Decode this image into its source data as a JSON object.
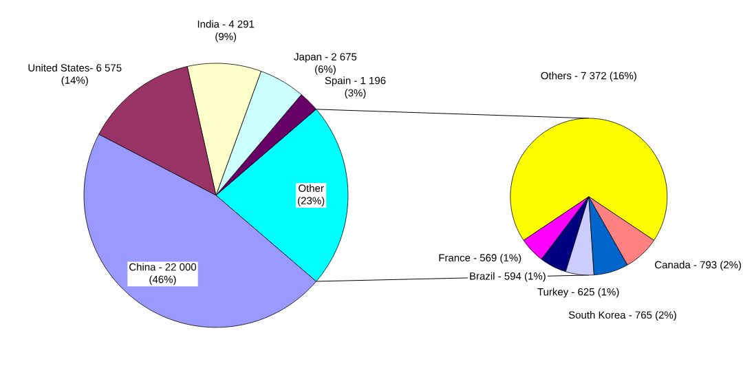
{
  "chart_data": [
    {
      "type": "pie",
      "categories": [
        "Other",
        "Spain - 1 196",
        "Japan - 2 675",
        "India - 4 291",
        "United States- 6 575",
        "China - 22 000"
      ],
      "values": [
        22.59,
        2.52,
        5.64,
        9.04,
        13.86,
        46.35
      ],
      "value_labels": [
        "(23%)",
        "(3%)",
        "(6%)",
        "(9%)",
        "(14%)",
        "(46%)"
      ],
      "colors": [
        "#00ffff",
        "#660066",
        "#ccffff",
        "#ffffcc",
        "#993366",
        "#9999ff"
      ]
    },
    {
      "type": "pie",
      "categories": [
        "Others - 7 372 (16%)",
        "France - 569 (1%)",
        "Brazil - 594 (1%)",
        "Turkey - 625 (1%)",
        "South Korea - 765 (2%)",
        "Canada - 793 (2%)"
      ],
      "values": [
        68.78,
        5.31,
        5.54,
        5.83,
        7.14,
        7.4
      ],
      "colors": [
        "#ffff00",
        "#ff00ff",
        "#000080",
        "#ccccff",
        "#0066cc",
        "#ff8080"
      ]
    }
  ]
}
